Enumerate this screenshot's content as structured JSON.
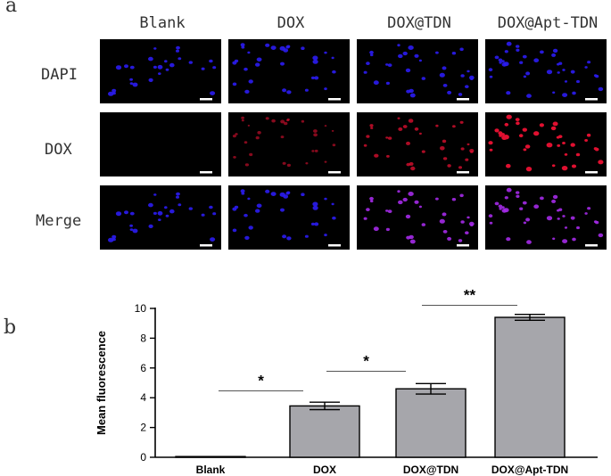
{
  "figure": {
    "panel_a": "a",
    "panel_b": "b",
    "columns": [
      "Blank",
      "DOX",
      "DOX@TDN",
      "DOX@Apt-TDN"
    ],
    "rows": [
      "DAPI",
      "DOX",
      "Merge"
    ],
    "channel_colors": {
      "dapi": "#2b1cf2",
      "dox": "#e01030",
      "merge": "#a42ae8"
    },
    "dox_intensity": [
      0,
      0.35,
      0.6,
      1.0
    ]
  },
  "chart_data": {
    "type": "bar",
    "categories": [
      "Blank",
      "DOX",
      "DOX@TDN",
      "DOX@Apt-TDN"
    ],
    "values": [
      0.05,
      3.45,
      4.6,
      9.4
    ],
    "errors": [
      0.03,
      0.25,
      0.35,
      0.2
    ],
    "ylabel": "Mean fluorescence",
    "ylim": [
      0,
      10
    ],
    "yticks": [
      0,
      2,
      4,
      6,
      8,
      10
    ],
    "bar_color": "#a6a6ab",
    "significance": [
      {
        "from": 0,
        "to": 1,
        "label": "*"
      },
      {
        "from": 1,
        "to": 2,
        "label": "*"
      },
      {
        "from": 2,
        "to": 3,
        "label": "**"
      }
    ]
  }
}
